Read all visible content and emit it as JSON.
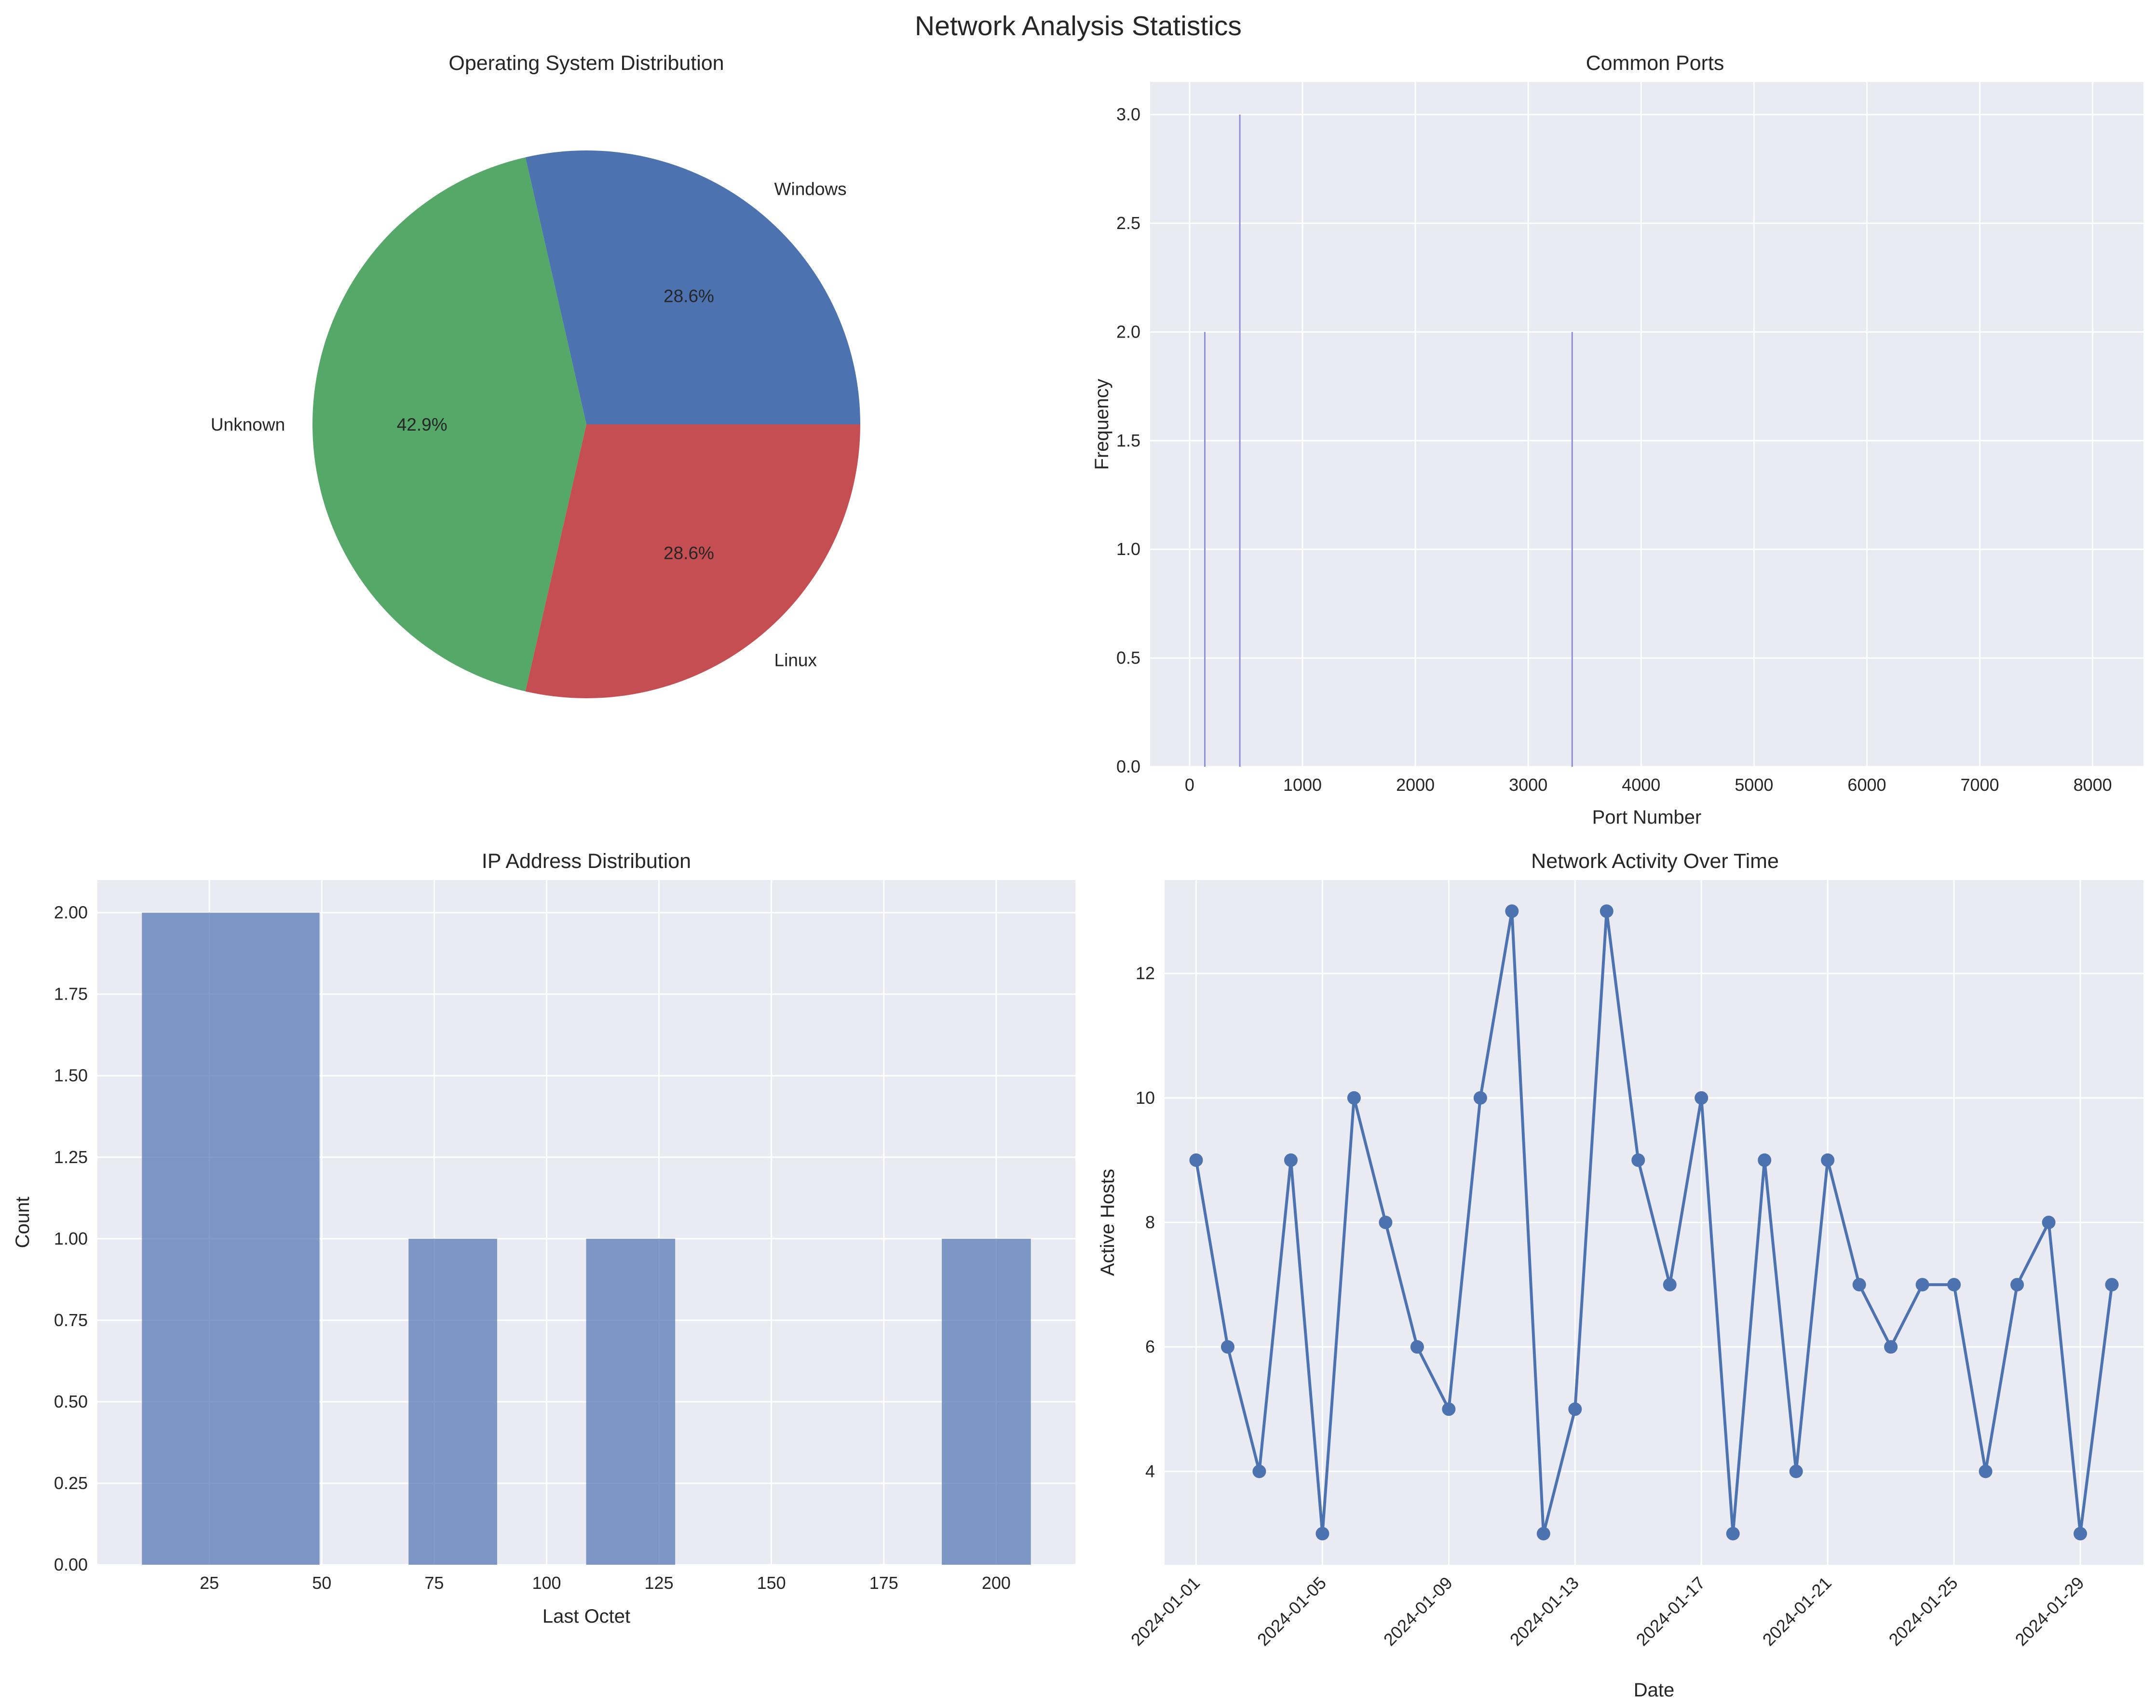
{
  "suptitle": "Network Analysis Statistics",
  "chart_data": [
    {
      "type": "pie",
      "title": "Operating System Distribution",
      "labels": [
        "Windows",
        "Unknown",
        "Linux"
      ],
      "values": [
        28.6,
        42.9,
        28.6
      ],
      "pct_labels": [
        "28.6%",
        "42.9%",
        "28.6%"
      ],
      "colors": [
        "#4c72b0",
        "#55a868",
        "#c44e52"
      ]
    },
    {
      "type": "bar",
      "title": "Common Ports",
      "xlabel": "Port Number",
      "ylabel": "Frequency",
      "bars": [
        {
          "x": 135,
          "y": 2
        },
        {
          "x": 445,
          "y": 3
        },
        {
          "x": 3389,
          "y": 2
        }
      ],
      "xlim": [
        -350,
        8450
      ],
      "ylim": [
        0,
        3.15
      ],
      "xticks": [
        0,
        1000,
        2000,
        3000,
        4000,
        5000,
        6000,
        7000,
        8000
      ],
      "yticks": [
        "0.0",
        "0.5",
        "1.0",
        "1.5",
        "2.0",
        "2.5",
        "3.0"
      ],
      "color": "#8a8fd6"
    },
    {
      "type": "bar",
      "title": "IP Address Distribution",
      "xlabel": "Last Octet",
      "ylabel": "Count",
      "bins": [
        {
          "start": 10,
          "end": 49.5,
          "count": 2
        },
        {
          "start": 69.3,
          "end": 89,
          "count": 1
        },
        {
          "start": 108.8,
          "end": 128.6,
          "count": 1
        },
        {
          "start": 187.9,
          "end": 207.7,
          "count": 1
        }
      ],
      "xlim": [
        0.1,
        217.6
      ],
      "ylim": [
        0,
        2.1
      ],
      "xticks": [
        25,
        50,
        75,
        100,
        125,
        150,
        175,
        200
      ],
      "yticks": [
        "0.00",
        "0.25",
        "0.50",
        "0.75",
        "1.00",
        "1.25",
        "1.50",
        "1.75",
        "2.00"
      ],
      "color": "#4c72b0"
    },
    {
      "type": "line",
      "title": "Network Activity Over Time",
      "xlabel": "Date",
      "ylabel": "Active Hosts",
      "x": [
        "2024-01-01",
        "2024-01-02",
        "2024-01-03",
        "2024-01-04",
        "2024-01-05",
        "2024-01-06",
        "2024-01-07",
        "2024-01-08",
        "2024-01-09",
        "2024-01-10",
        "2024-01-11",
        "2024-01-12",
        "2024-01-13",
        "2024-01-14",
        "2024-01-15",
        "2024-01-16",
        "2024-01-17",
        "2024-01-18",
        "2024-01-19",
        "2024-01-20",
        "2024-01-21",
        "2024-01-22",
        "2024-01-23",
        "2024-01-24",
        "2024-01-25",
        "2024-01-26",
        "2024-01-27",
        "2024-01-28",
        "2024-01-29",
        "2024-01-30"
      ],
      "y": [
        9,
        6,
        4,
        9,
        3,
        10,
        8,
        6,
        5,
        10,
        13,
        3,
        5,
        13,
        9,
        7,
        10,
        3,
        9,
        4,
        9,
        7,
        6,
        7,
        7,
        4,
        7,
        8,
        3,
        7
      ],
      "xticks": [
        "2024-01-01",
        "2024-01-05",
        "2024-01-09",
        "2024-01-13",
        "2024-01-17",
        "2024-01-21",
        "2024-01-25",
        "2024-01-29"
      ],
      "xlim": [
        "2023-12-31",
        "2024-01-31"
      ],
      "ylim": [
        2.5,
        13.5
      ],
      "yticks": [
        4,
        6,
        8,
        10,
        12
      ],
      "color": "#4c72b0"
    }
  ]
}
